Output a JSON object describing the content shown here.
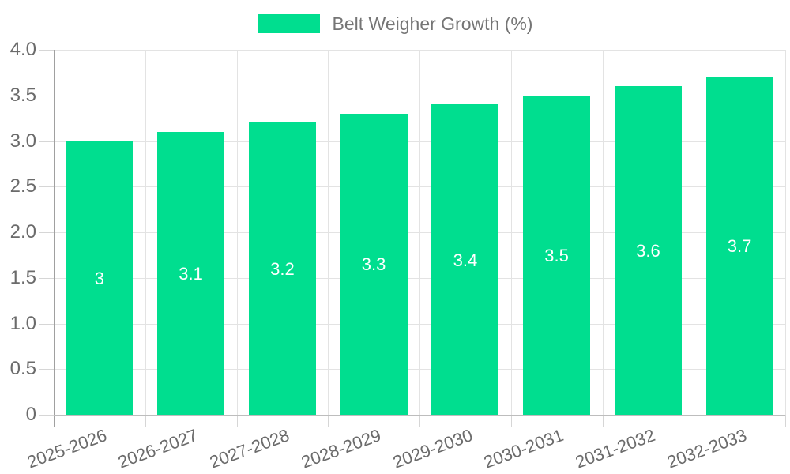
{
  "legend": {
    "label": "Belt Weigher Growth (%)"
  },
  "chart_data": {
    "type": "bar",
    "title": "Belt Weigher Growth (%)",
    "categories": [
      "2025-2026",
      "2026-2027",
      "2027-2028",
      "2028-2029",
      "2029-2030",
      "2030-2031",
      "2031-2032",
      "2032-2033"
    ],
    "series": [
      {
        "name": "Belt Weigher Growth (%)",
        "values": [
          3,
          3.1,
          3.2,
          3.3,
          3.4,
          3.5,
          3.6,
          3.7
        ],
        "value_labels": [
          "3",
          "3.1",
          "3.2",
          "3.3",
          "3.4",
          "3.5",
          "3.6",
          "3.7"
        ]
      }
    ],
    "xlabel": "",
    "ylabel": "",
    "ylim": [
      0,
      4
    ],
    "y_ticks": [
      {
        "value": 0,
        "label": "0"
      },
      {
        "value": 0.5,
        "label": "0.5"
      },
      {
        "value": 1,
        "label": "1.0"
      },
      {
        "value": 1.5,
        "label": "1.5"
      },
      {
        "value": 2,
        "label": "2.0"
      },
      {
        "value": 2.5,
        "label": "2.5"
      },
      {
        "value": 3,
        "label": "3.0"
      },
      {
        "value": 3.5,
        "label": "3.5"
      },
      {
        "value": 4,
        "label": "4.0"
      }
    ],
    "grid": true,
    "legend_position": "top"
  },
  "colors": {
    "bar": "#00DE8F",
    "grid": "#E3E3E3",
    "tick": "#D6D6D6",
    "y_axis_line": "#A0A0A0",
    "x_axis_line": "#BDBDBD",
    "axis_text": "#6B6B6B",
    "legend_text": "#757575",
    "bar_label": "#FFFFFF",
    "background": "#FFFFFF"
  }
}
